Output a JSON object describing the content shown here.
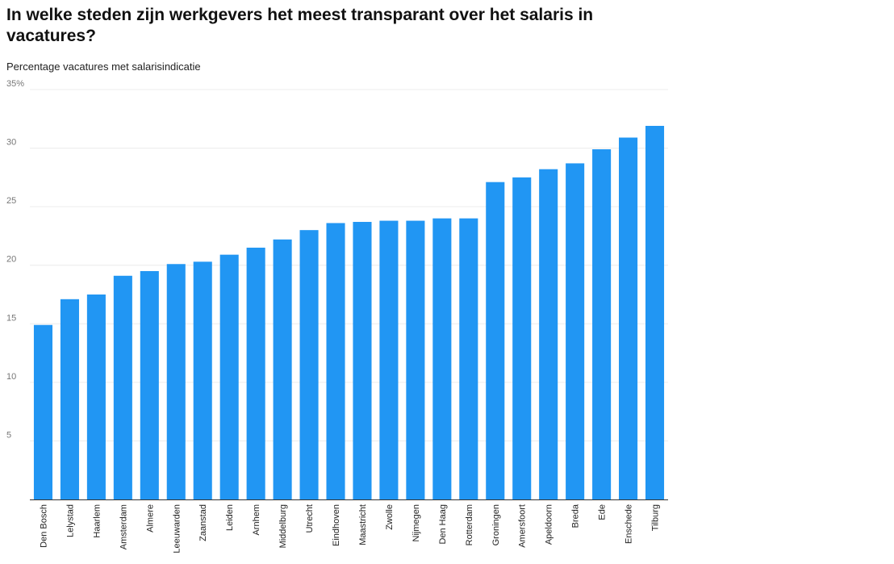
{
  "chart_data": {
    "type": "bar",
    "title": "In welke steden zijn werkgevers het meest transparant over het salaris in vacatures?",
    "subtitle": "Percentage vacatures met salarisindicatie",
    "xlabel": "",
    "ylabel": "",
    "ylim": [
      0,
      35
    ],
    "yticks": [
      {
        "value": 35,
        "label": "35%"
      },
      {
        "value": 30,
        "label": "30"
      },
      {
        "value": 25,
        "label": "25"
      },
      {
        "value": 20,
        "label": "20"
      },
      {
        "value": 15,
        "label": "15"
      },
      {
        "value": 10,
        "label": "10"
      },
      {
        "value": 5,
        "label": "5"
      }
    ],
    "grid": true,
    "legend": "none",
    "bar_color": "#2196f3",
    "categories": [
      "Den Bosch",
      "Lelystad",
      "Haarlem",
      "Amsterdam",
      "Almere",
      "Leeuwarden",
      "Zaanstad",
      "Leiden",
      "Arnhem",
      "Middelburg",
      "Utrecht",
      "Eindhoven",
      "Maastricht",
      "Zwolle",
      "Nijmegen",
      "Den Haag",
      "Rotterdam",
      "Groningen",
      "Amersfoort",
      "Apeldoorn",
      "Breda",
      "Ede",
      "Enschede",
      "Tilburg"
    ],
    "values": [
      14.9,
      17.1,
      17.5,
      19.1,
      19.5,
      20.1,
      20.3,
      20.9,
      21.5,
      22.2,
      23.0,
      23.6,
      23.7,
      23.8,
      23.8,
      24.0,
      24.0,
      27.1,
      27.5,
      28.2,
      28.7,
      29.9,
      30.9,
      31.9
    ]
  }
}
